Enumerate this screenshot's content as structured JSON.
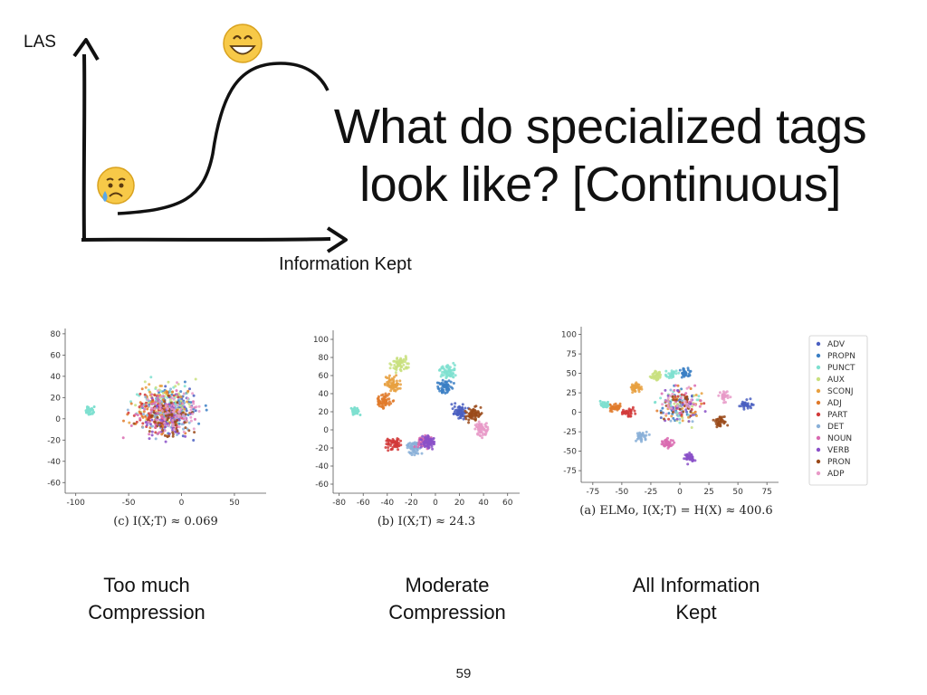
{
  "slide": {
    "title_line1": "What do specialized tags",
    "title_line2": "look like? [Continuous]",
    "page_number": "59"
  },
  "sketch": {
    "y_axis_label": "LAS",
    "x_axis_label": "Information Kept",
    "low_icon": "crying-face-emoji",
    "high_icon": "grinning-face-emoji"
  },
  "captions": [
    {
      "line1": "Too much",
      "line2": "Compression"
    },
    {
      "line1": "Moderate",
      "line2": "Compression"
    },
    {
      "line1": "All Information",
      "line2": "Kept"
    }
  ],
  "legend": {
    "entries": [
      {
        "name": "ADV",
        "color": "#4a5fc1"
      },
      {
        "name": "PROPN",
        "color": "#3b7fc4"
      },
      {
        "name": "PUNCT",
        "color": "#7fe0d0"
      },
      {
        "name": "AUX",
        "color": "#c9e07f"
      },
      {
        "name": "SCONJ",
        "color": "#e8a040"
      },
      {
        "name": "ADJ",
        "color": "#e07a2a"
      },
      {
        "name": "PART",
        "color": "#d23b3b"
      },
      {
        "name": "DET",
        "color": "#8ab0d8"
      },
      {
        "name": "NOUN",
        "color": "#d96ab0"
      },
      {
        "name": "VERB",
        "color": "#8a50c8"
      },
      {
        "name": "PRON",
        "color": "#9a4a1a"
      },
      {
        "name": "ADP",
        "color": "#e89ac8"
      }
    ]
  },
  "chart_data": [
    {
      "type": "scatter",
      "caption": "(c) I(X;T) ≈ 0.069",
      "xticks": [
        -100,
        -50,
        0,
        50
      ],
      "yticks": [
        80,
        60,
        40,
        20,
        0,
        -20,
        -40,
        -60
      ],
      "xlim": [
        -110,
        80
      ],
      "ylim": [
        -70,
        85
      ]
    },
    {
      "type": "scatter",
      "caption": "(b) I(X;T) ≈ 24.3",
      "xticks": [
        -80,
        -60,
        -40,
        -20,
        0,
        20,
        40,
        60
      ],
      "yticks": [
        100,
        80,
        60,
        40,
        20,
        0,
        -20,
        -40,
        -60
      ],
      "xlim": [
        -85,
        70
      ],
      "ylim": [
        -70,
        110
      ]
    },
    {
      "type": "scatter",
      "caption": "(a) ELMo, I(X;T) = H(X) ≈ 400.6",
      "xticks": [
        -75,
        -50,
        -25,
        0,
        25,
        50,
        75
      ],
      "yticks": [
        100,
        75,
        50,
        25,
        0,
        -25,
        -50,
        -75
      ],
      "xlim": [
        -85,
        85
      ],
      "ylim": [
        -90,
        110
      ]
    }
  ]
}
